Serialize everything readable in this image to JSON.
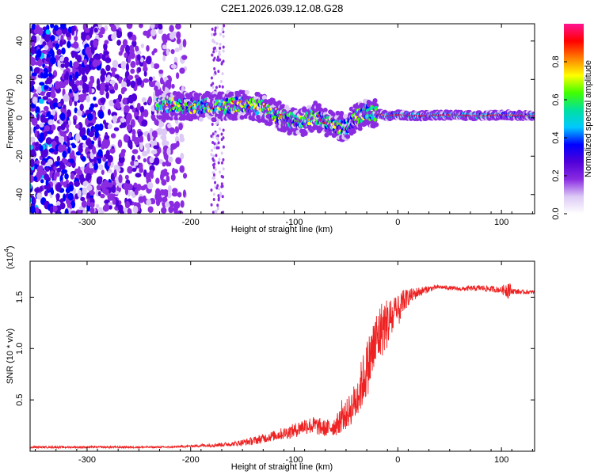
{
  "title": "C2E1.2026.039.12.08.G28",
  "chart_data": [
    {
      "type": "heatmap",
      "xlabel": "Height of straight line (km)",
      "ylabel": "Frequency (Hz)",
      "xlim": [
        -355,
        132
      ],
      "ylim": [
        -50,
        49
      ],
      "xticks": [
        -300,
        -200,
        -100,
        0,
        100
      ],
      "yticks": [
        -40,
        -20,
        0,
        20,
        40
      ],
      "colorbar": {
        "label": "Normalized spectral amplitude",
        "range": [
          0,
          1
        ],
        "ticks": [
          "0.0",
          "0.2",
          "0.4",
          "0.6",
          "0.8"
        ],
        "tick_values": [
          0.0,
          0.2,
          0.4,
          0.6,
          0.8
        ],
        "colors": [
          "#ffffff",
          "#dccaf5",
          "#8a2be2",
          "#5000d8",
          "#0000ff",
          "#00c8ff",
          "#00e0a0",
          "#40ff00",
          "#ffff00",
          "#ff8000",
          "#ff0000",
          "#ff1493"
        ]
      },
      "ridge": {
        "x": [
          -230,
          -200,
          -170,
          -150,
          -130,
          -110,
          -95,
          -80,
          -70,
          -60,
          -50,
          -40,
          -30,
          -20,
          -10,
          0,
          20,
          50,
          80,
          100,
          130
        ],
        "y": [
          7,
          6,
          6,
          7,
          5,
          0,
          -3,
          1,
          -2,
          -4,
          -5,
          0,
          3,
          2,
          1,
          1.5,
          1,
          1.5,
          1,
          1.5,
          1
        ]
      }
    },
    {
      "type": "line",
      "xlabel": "Height of straight line (km)",
      "ylabel": "SNR (10 * v/v)",
      "exponent_label": "(x10",
      "exponent_power": "4",
      "exponent_close": ")",
      "xlim": [
        -355,
        132
      ],
      "ylim": [
        0,
        1.85
      ],
      "xticks": [
        -300,
        -200,
        -100,
        0,
        100
      ],
      "yticks": [
        0.5,
        1.0,
        1.5
      ],
      "ytick_labels": [
        "0.5",
        "1.0",
        "1.5"
      ],
      "color": "#ee2222",
      "series": [
        {
          "x": [
            -355,
            -300,
            -250,
            -220,
            -200,
            -180,
            -160,
            -140,
            -120,
            -100,
            -90,
            -80,
            -70,
            -60,
            -50,
            -40,
            -35,
            -30,
            -25,
            -20,
            -15,
            -10,
            -5,
            0,
            5,
            10,
            20,
            30,
            40,
            60,
            80,
            100,
            107,
            110,
            120,
            132
          ],
          "y": [
            0.04,
            0.04,
            0.04,
            0.04,
            0.05,
            0.06,
            0.07,
            0.1,
            0.15,
            0.2,
            0.25,
            0.25,
            0.22,
            0.25,
            0.35,
            0.5,
            0.65,
            0.8,
            0.95,
            1.1,
            1.2,
            1.25,
            1.3,
            1.35,
            1.45,
            1.5,
            1.55,
            1.58,
            1.6,
            1.58,
            1.59,
            1.57,
            1.58,
            1.56,
            1.55,
            1.55
          ],
          "noise": [
            0.01,
            0.01,
            0.01,
            0.01,
            0.01,
            0.02,
            0.02,
            0.04,
            0.05,
            0.07,
            0.08,
            0.09,
            0.08,
            0.1,
            0.14,
            0.2,
            0.25,
            0.28,
            0.3,
            0.3,
            0.28,
            0.25,
            0.2,
            0.16,
            0.12,
            0.08,
            0.05,
            0.03,
            0.02,
            0.02,
            0.03,
            0.03,
            0.1,
            0.03,
            0.02,
            0.02
          ]
        }
      ]
    }
  ]
}
